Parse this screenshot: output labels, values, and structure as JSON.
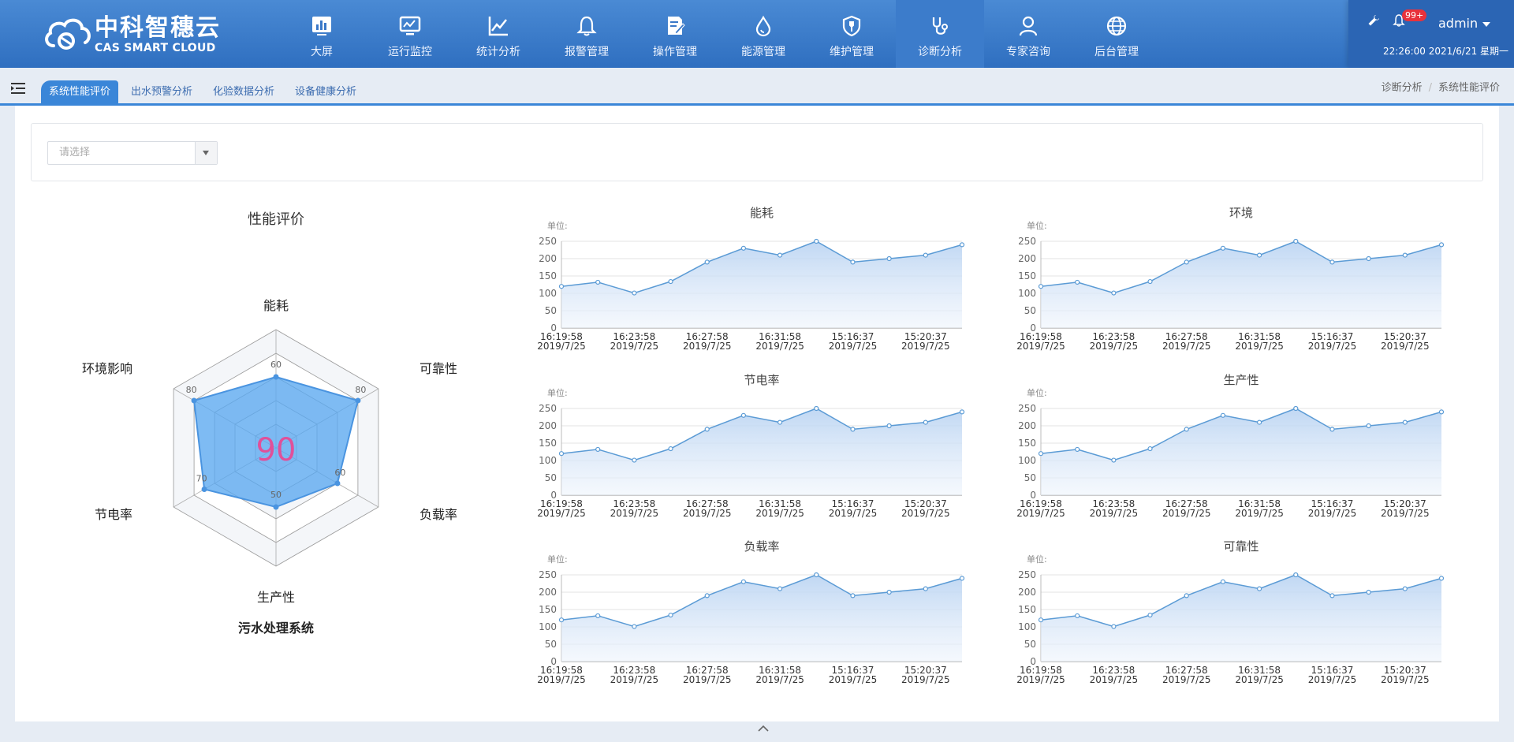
{
  "header": {
    "logo_cn": "中科智穗云",
    "logo_en": "CAS SMART CLOUD",
    "nav": [
      {
        "label": "大屏",
        "icon": "bar-chart-icon"
      },
      {
        "label": "运行监控",
        "icon": "monitor-icon"
      },
      {
        "label": "统计分析",
        "icon": "line-chart-icon"
      },
      {
        "label": "报警管理",
        "icon": "bell-icon"
      },
      {
        "label": "操作管理",
        "icon": "edit-doc-icon"
      },
      {
        "label": "能源管理",
        "icon": "drop-icon"
      },
      {
        "label": "维护管理",
        "icon": "wrench-shield-icon"
      },
      {
        "label": "诊断分析",
        "icon": "stethoscope-icon",
        "active": true
      },
      {
        "label": "专家咨询",
        "icon": "user-icon"
      },
      {
        "label": "后台管理",
        "icon": "globe-icon"
      }
    ],
    "badge": "99+",
    "username": "admin",
    "clock": "22:26:00 2021/6/21 星期一"
  },
  "tabs": [
    "系统性能评价",
    "出水预警分析",
    "化验数据分析",
    "设备健康分析"
  ],
  "breadcrumb": [
    "诊断分析",
    "系统性能评价"
  ],
  "filter": {
    "placeholder": "请选择"
  },
  "colors": {
    "accent": "#3a86d8",
    "radar_fill": "#5aa8f0",
    "score": "#e0509a",
    "line": "#5b9bd5"
  },
  "chart_data": [
    {
      "type": "radar",
      "title": "性能评价",
      "subtitle": "污水处理系统",
      "score": "90",
      "indicators": [
        "能耗",
        "可靠性",
        "负载率",
        "生产性",
        "节电率",
        "环境影响"
      ],
      "values": [
        60,
        80,
        60,
        50,
        70,
        80
      ],
      "max": 100
    },
    {
      "type": "area",
      "title": "能耗",
      "unit_label": "单位:",
      "x": [
        "16:19:58\n2019/7/25",
        "",
        "16:23:58\n2019/7/25",
        "",
        "16:27:58\n2019/7/25",
        "",
        "16:31:58\n2019/7/25",
        "",
        "15:16:37\n2019/7/25",
        "",
        "15:20:37\n2019/7/25",
        ""
      ],
      "values": [
        120,
        132,
        101,
        134,
        190,
        230,
        210,
        250,
        190,
        200,
        210,
        240
      ],
      "yticks": [
        0,
        50,
        100,
        150,
        200,
        250
      ],
      "ylim": [
        0,
        250
      ]
    },
    {
      "type": "area",
      "title": "环境",
      "unit_label": "单位:",
      "values": [
        120,
        132,
        101,
        134,
        190,
        230,
        210,
        250,
        190,
        200,
        210,
        240
      ],
      "yticks": [
        0,
        50,
        100,
        150,
        200,
        250
      ],
      "ylim": [
        0,
        250
      ]
    },
    {
      "type": "area",
      "title": "节电率",
      "unit_label": "单位:",
      "values": [
        120,
        132,
        101,
        134,
        190,
        230,
        210,
        250,
        190,
        200,
        210,
        240
      ],
      "yticks": [
        0,
        50,
        100,
        150,
        200,
        250
      ],
      "ylim": [
        0,
        250
      ]
    },
    {
      "type": "area",
      "title": "生产性",
      "unit_label": "单位:",
      "values": [
        120,
        132,
        101,
        134,
        190,
        230,
        210,
        250,
        190,
        200,
        210,
        240
      ],
      "yticks": [
        0,
        50,
        100,
        150,
        200,
        250
      ],
      "ylim": [
        0,
        250
      ]
    },
    {
      "type": "area",
      "title": "负载率",
      "unit_label": "单位:",
      "values": [
        120,
        132,
        101,
        134,
        190,
        230,
        210,
        250,
        190,
        200,
        210,
        240
      ],
      "yticks": [
        0,
        50,
        100,
        150,
        200,
        250
      ],
      "ylim": [
        0,
        250
      ]
    },
    {
      "type": "area",
      "title": "可靠性",
      "unit_label": "单位:",
      "values": [
        120,
        132,
        101,
        134,
        190,
        230,
        210,
        250,
        190,
        200,
        210,
        240
      ],
      "yticks": [
        0,
        50,
        100,
        150,
        200,
        250
      ],
      "ylim": [
        0,
        250
      ]
    }
  ],
  "xaxis_labels": [
    {
      "time": "16:19:58",
      "date": "2019/7/25"
    },
    {
      "time": "16:23:58",
      "date": "2019/7/25"
    },
    {
      "time": "16:27:58",
      "date": "2019/7/25"
    },
    {
      "time": "16:31:58",
      "date": "2019/7/25"
    },
    {
      "time": "15:16:37",
      "date": "2019/7/25"
    },
    {
      "time": "15:20:37",
      "date": "2019/7/25"
    }
  ]
}
